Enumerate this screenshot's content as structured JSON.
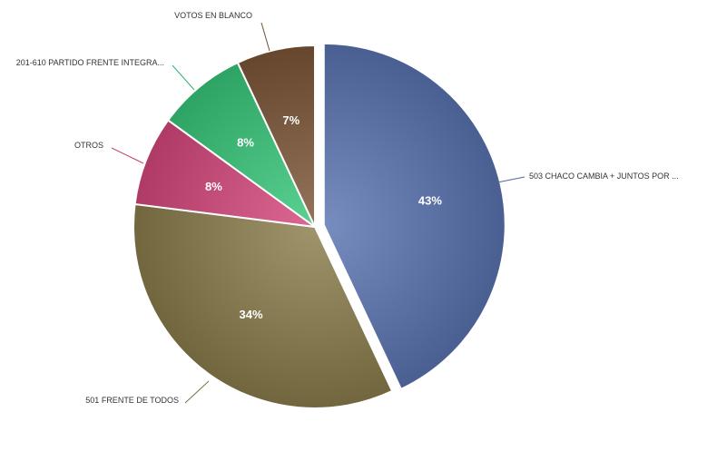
{
  "chart_data": {
    "type": "pie",
    "title": "",
    "slices": [
      {
        "label": "503 CHACO CAMBIA + JUNTOS POR ...",
        "value": 43,
        "percent_label": "43%",
        "color": "#5a74b1",
        "exploded": true
      },
      {
        "label": "501 FRENTE DE TODOS",
        "value": 34,
        "percent_label": "34%",
        "color": "#8a7c4b",
        "exploded": false
      },
      {
        "label": "OTROS",
        "value": 8,
        "percent_label": "8%",
        "color": "#d7477c",
        "exploded": false
      },
      {
        "label": "201-610 PARTIDO FRENTE INTEGRA...",
        "value": 8,
        "percent_label": "8%",
        "color": "#37c77a",
        "exploded": false
      },
      {
        "label": "VOTOS EN BLANCO",
        "value": 7,
        "percent_label": "7%",
        "color": "#7c5738",
        "exploded": false
      }
    ]
  }
}
